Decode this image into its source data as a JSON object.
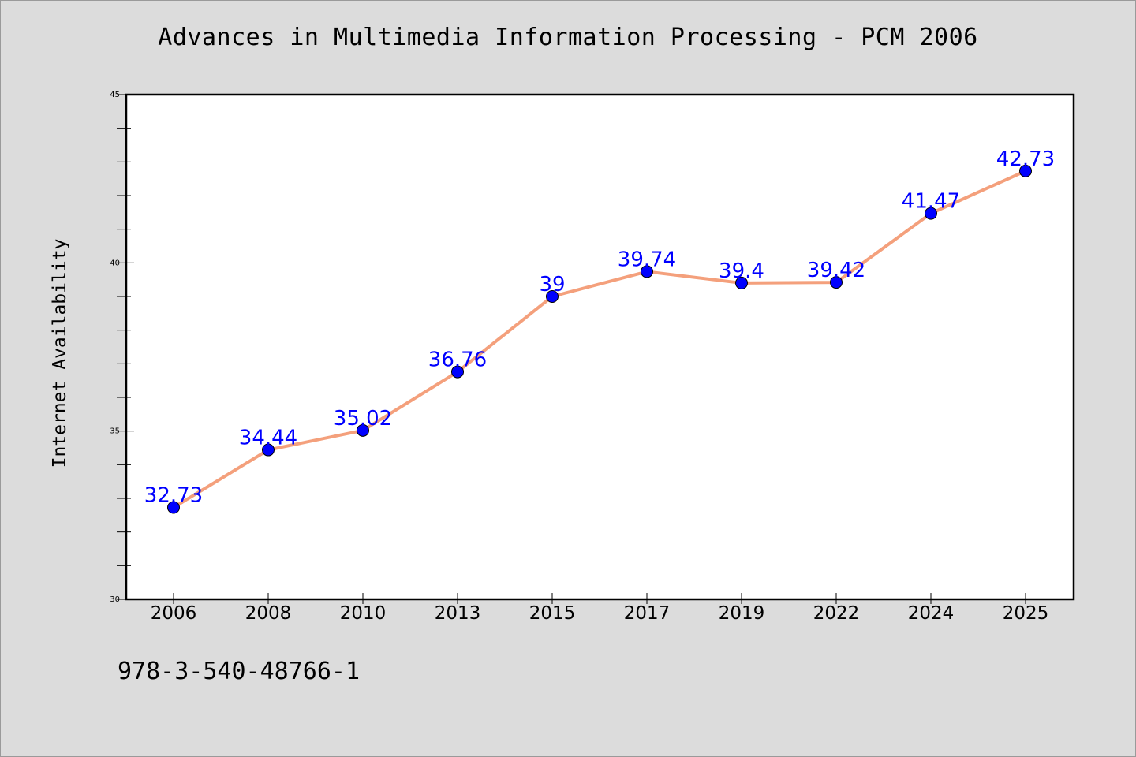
{
  "chart_data": {
    "type": "line",
    "title": "Advances in Multimedia Information Processing - PCM 2006",
    "xlabel": "",
    "ylabel": "Internet Availability",
    "categories": [
      "2006",
      "2008",
      "2010",
      "2013",
      "2015",
      "2017",
      "2019",
      "2022",
      "2024",
      "2025"
    ],
    "series": [
      {
        "values": [
          32.73,
          34.44,
          35.02,
          36.76,
          39,
          39.74,
          39.4,
          39.42,
          41.47,
          42.73
        ],
        "labels": [
          "32.73",
          "34.44",
          "35.02",
          "36.76",
          "39",
          "39.74",
          "39.4",
          "39.42",
          "41.47",
          "42.73"
        ]
      }
    ],
    "ylim": [
      30,
      45
    ],
    "yticks": [
      "30",
      "35",
      "40",
      "45"
    ],
    "grid": false,
    "line_color": "#f4a07c",
    "marker_color": "#0000ff",
    "label_color": "#0000ff",
    "background_color": "#dcdcdc",
    "plot_background_color": "#ffffff"
  },
  "footer": {
    "isbn": "978-3-540-48766-1"
  }
}
